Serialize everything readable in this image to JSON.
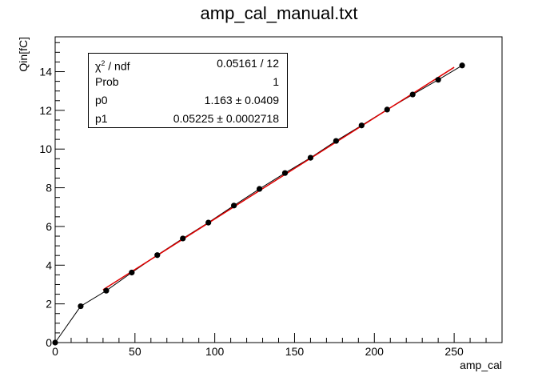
{
  "chart_data": {
    "type": "scatter",
    "title": "amp_cal_manual.txt",
    "xlabel": "amp_cal",
    "ylabel": "Qin[fC]",
    "xlim": [
      0,
      280
    ],
    "ylim": [
      0,
      15.8
    ],
    "x_ticks": [
      0,
      50,
      100,
      150,
      200,
      250
    ],
    "y_ticks": [
      0,
      2,
      4,
      6,
      8,
      10,
      12,
      14
    ],
    "series": [
      {
        "x": [
          0,
          16,
          32,
          48,
          64,
          80,
          96,
          112,
          128,
          144,
          160,
          176,
          192,
          208,
          224,
          240,
          255
        ],
        "y": [
          0.0,
          1.88,
          2.68,
          3.62,
          4.52,
          5.38,
          6.2,
          7.08,
          7.94,
          8.76,
          9.55,
          10.42,
          11.22,
          12.04,
          12.82,
          13.58,
          14.32
        ],
        "color": "#000000"
      }
    ],
    "fit": {
      "color": "#e00000",
      "x_range": [
        30,
        250
      ],
      "p0": 1.163,
      "p1": 0.05225
    },
    "stats": {
      "chi2_label": "χ",
      "chi2_sup": "2",
      "chi2_rest": " / ndf",
      "chi2_value": "0.05161 / 12",
      "prob_label": "Prob",
      "prob_value": "1",
      "p0_label": "p0",
      "p0_value": "1.163 ± 0.0409",
      "p1_label": "p1",
      "p1_value": "0.05225 ± 0.0002718"
    }
  }
}
